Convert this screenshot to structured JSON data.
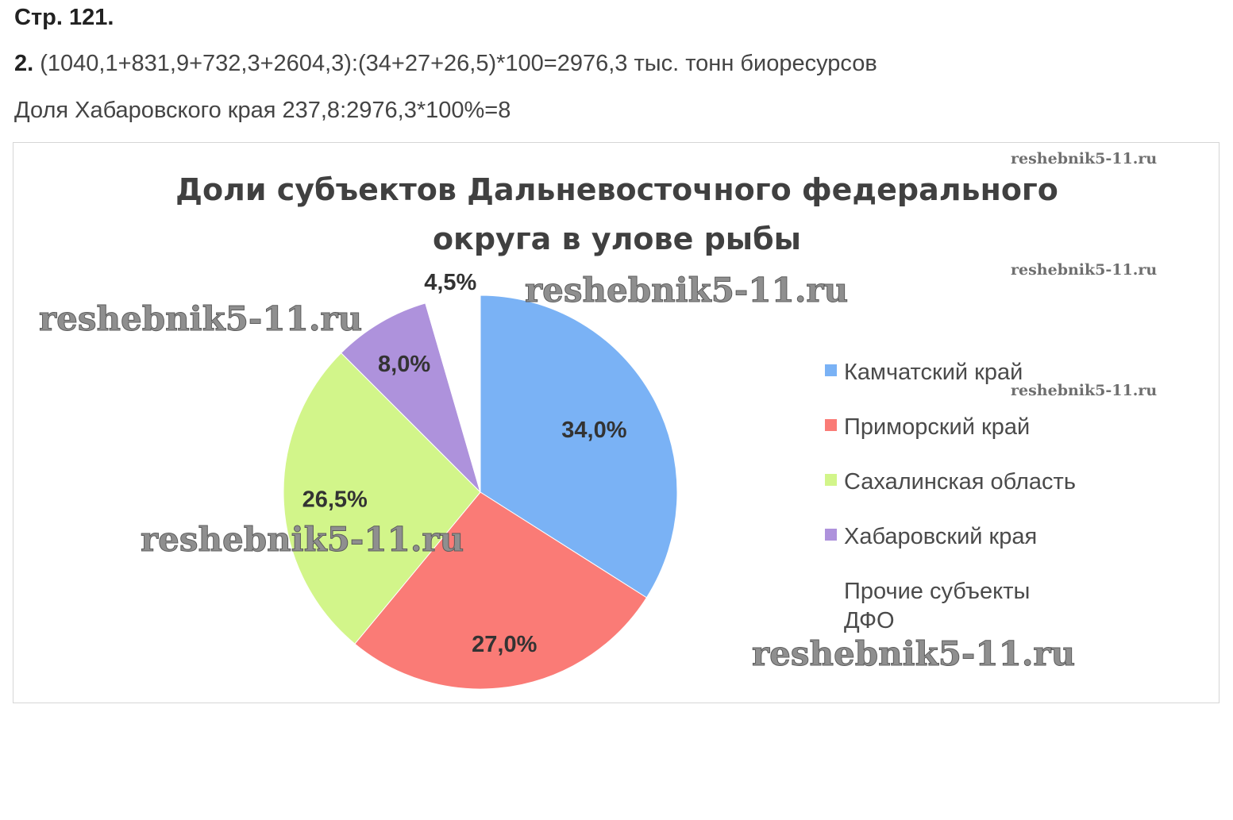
{
  "page": {
    "heading": "Стр. 121.",
    "task_number": "2.",
    "calc_line_1": "(1040,1+831,9+732,3+2604,3):(34+27+26,5)*100=2976,3 тыс. тонн биоресурсов",
    "calc_line_2": "Доля Хабаровского края 237,8:2976,3*100%=8"
  },
  "watermark": {
    "text": "reshebnik5-11.ru"
  },
  "chart_data": {
    "type": "pie",
    "title": "Доли субъектов Дальневосточного федерального округа в улове рыбы",
    "title_lines": [
      "Доли субъектов Дальневосточного федерального",
      "округа в улове рыбы"
    ],
    "legend_position": "right",
    "start_angle_deg": 0,
    "direction": "clockwise",
    "slices": [
      {
        "name": "Камчатский край",
        "name_lines": [
          "Камчатский край"
        ],
        "value": 34.0,
        "label": "34,0%",
        "color": "#7ab2f5"
      },
      {
        "name": "Приморский край",
        "name_lines": [
          "Приморский край"
        ],
        "value": 27.0,
        "label": "27,0%",
        "color": "#fa7b76"
      },
      {
        "name": "Сахалинская область",
        "name_lines": [
          "Сахалинская область"
        ],
        "value": 26.5,
        "label": "26,5%",
        "color": "#d2f58a"
      },
      {
        "name": "Хабаровский края",
        "name_lines": [
          "Хабаровский края"
        ],
        "value": 8.0,
        "label": "8,0%",
        "color": "#ae92dc"
      },
      {
        "name": "Прочие субъекты ДФО",
        "name_lines": [
          "Прочие субъекты",
          "ДФО"
        ],
        "value": 4.5,
        "label": "4,5%",
        "color": "#ffffff"
      }
    ]
  }
}
